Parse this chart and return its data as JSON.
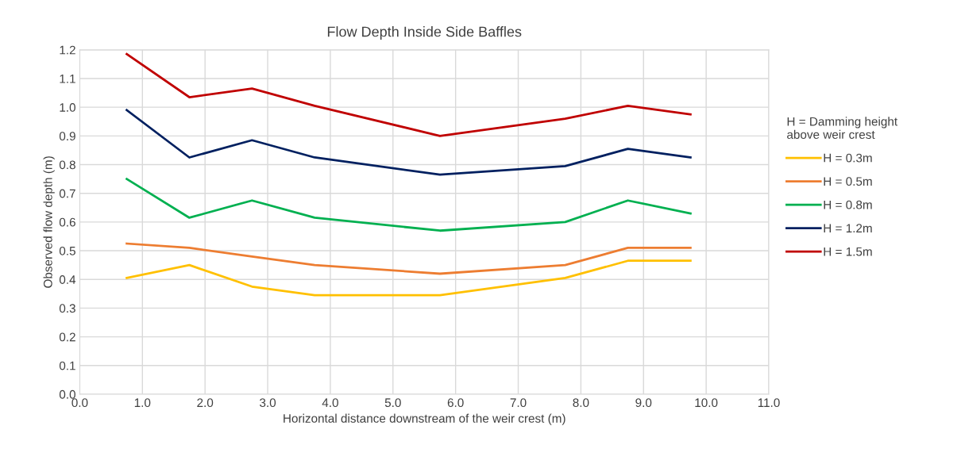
{
  "chart_data": {
    "type": "line",
    "title": "Flow Depth Inside Side Baffles",
    "xlabel": "Horizontal distance downstream of the weir crest (m)",
    "ylabel": "Observed flow depth (m)",
    "legend_title": "H = Damming height\nabove weir crest",
    "x": [
      0.75,
      1.75,
      2.75,
      3.75,
      5.75,
      7.75,
      8.75,
      9.75
    ],
    "series": [
      {
        "name": "H = 0.3m",
        "color": "#ffc000",
        "values": [
          0.405,
          0.45,
          0.375,
          0.345,
          0.345,
          0.405,
          0.465,
          0.465
        ]
      },
      {
        "name": "H = 0.5m",
        "color": "#ed7d31",
        "values": [
          0.525,
          0.51,
          0.48,
          0.45,
          0.42,
          0.45,
          0.51,
          0.51
        ]
      },
      {
        "name": "H = 0.8m",
        "color": "#00b050",
        "values": [
          0.75,
          0.615,
          0.675,
          0.615,
          0.57,
          0.6,
          0.675,
          0.63
        ]
      },
      {
        "name": "H = 1.2m",
        "color": "#002060",
        "values": [
          0.99,
          0.825,
          0.885,
          0.825,
          0.765,
          0.795,
          0.855,
          0.825
        ]
      },
      {
        "name": "H = 1.5m",
        "color": "#c00000",
        "values": [
          1.185,
          1.035,
          1.065,
          1.005,
          0.9,
          0.96,
          1.005,
          0.975
        ]
      }
    ],
    "xlim": [
      0,
      11
    ],
    "ylim": [
      0,
      1.2
    ],
    "xticks": [
      {
        "value": 0,
        "label": "0.0"
      },
      {
        "value": 1,
        "label": "1.0"
      },
      {
        "value": 2,
        "label": "2.0"
      },
      {
        "value": 3,
        "label": "3.0"
      },
      {
        "value": 4,
        "label": "4.0"
      },
      {
        "value": 5,
        "label": "5.0"
      },
      {
        "value": 6,
        "label": "6.0"
      },
      {
        "value": 7,
        "label": "7.0"
      },
      {
        "value": 8,
        "label": "8.0"
      },
      {
        "value": 9,
        "label": "9.0"
      },
      {
        "value": 10,
        "label": "10.0"
      },
      {
        "value": 11,
        "label": "11.0"
      }
    ],
    "yticks": [
      {
        "value": 0,
        "label": "0.0"
      },
      {
        "value": 0.1,
        "label": "0.1"
      },
      {
        "value": 0.2,
        "label": "0.2"
      },
      {
        "value": 0.3,
        "label": "0.3"
      },
      {
        "value": 0.4,
        "label": "0.4"
      },
      {
        "value": 0.5,
        "label": "0.5"
      },
      {
        "value": 0.6,
        "label": "0.6"
      },
      {
        "value": 0.7,
        "label": "0.7"
      },
      {
        "value": 0.8,
        "label": "0.8"
      },
      {
        "value": 0.9,
        "label": "0.9"
      },
      {
        "value": 1,
        "label": "1.0"
      },
      {
        "value": 1.1,
        "label": "1.1"
      },
      {
        "value": 1.2,
        "label": "1.2"
      }
    ],
    "grid": true,
    "legend": "right",
    "marker": "none",
    "line_style": "solid"
  }
}
